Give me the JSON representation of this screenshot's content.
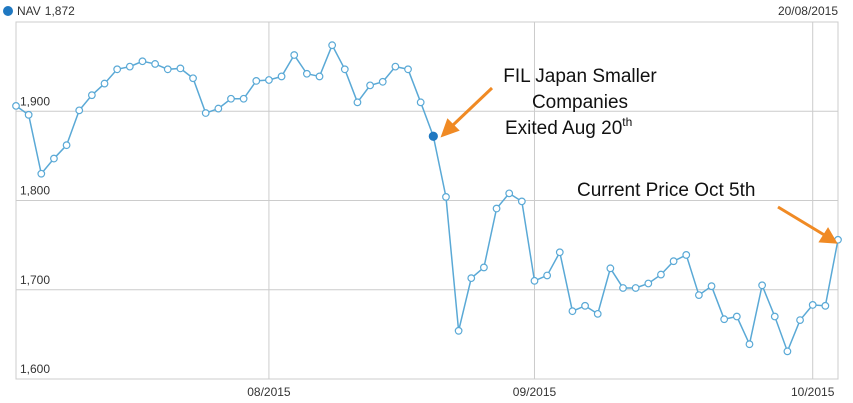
{
  "chart_data": {
    "type": "line",
    "tooltip": {
      "label": "1,872",
      "date": "20/08/2015"
    },
    "categories": [
      null,
      null,
      null,
      null,
      null,
      null,
      null,
      null,
      null,
      null,
      null,
      null,
      null,
      null,
      null,
      null,
      null,
      null,
      null,
      null,
      "08/2015",
      null,
      null,
      null,
      null,
      null,
      null,
      null,
      null,
      null,
      null,
      null,
      null,
      null,
      null,
      null,
      null,
      null,
      null,
      null,
      null,
      "09/2015",
      null,
      null,
      null,
      null,
      null,
      null,
      null,
      null,
      null,
      null,
      null,
      null,
      null,
      null,
      null,
      null,
      null,
      null,
      null,
      null,
      null,
      "10/2015",
      null,
      null
    ],
    "series": [
      {
        "name": "NAV",
        "color": "#5aa9d6",
        "highlight_color": "#1f78c1",
        "values": [
          1906,
          1896,
          1830,
          1847,
          1862,
          1901,
          1918,
          1931,
          1947,
          1950,
          1956,
          1953,
          1947,
          1948,
          1937,
          1898,
          1903,
          1914,
          1914,
          1934,
          1935,
          1939,
          1963,
          1942,
          1939,
          1974,
          1947,
          1910,
          1929,
          1933,
          1950,
          1947,
          1910,
          1872,
          1804,
          1654,
          1713,
          1725,
          1791,
          1808,
          1799,
          1710,
          1716,
          1742,
          1676,
          1682,
          1673,
          1724,
          1702,
          1702,
          1707,
          1717,
          1732,
          1739,
          1694,
          1704,
          1667,
          1670,
          1639,
          1705,
          1670,
          1631,
          1666,
          1683,
          1682,
          1756
        ]
      }
    ],
    "ylim": [
      1600,
      2000
    ],
    "yticks": [
      {
        "value": 1600,
        "label": "1,600"
      },
      {
        "value": 1700,
        "label": "1,700"
      },
      {
        "value": 1800,
        "label": "1,800"
      },
      {
        "value": 1900,
        "label": "1,900"
      }
    ],
    "grid": true,
    "annotations": [
      {
        "text": "FIL Japan Smaller"
      },
      {
        "text": "Companies"
      },
      {
        "text": "Exited Aug 20",
        "sup": "th"
      },
      {
        "text": "Current Price Oct 5th"
      }
    ]
  }
}
